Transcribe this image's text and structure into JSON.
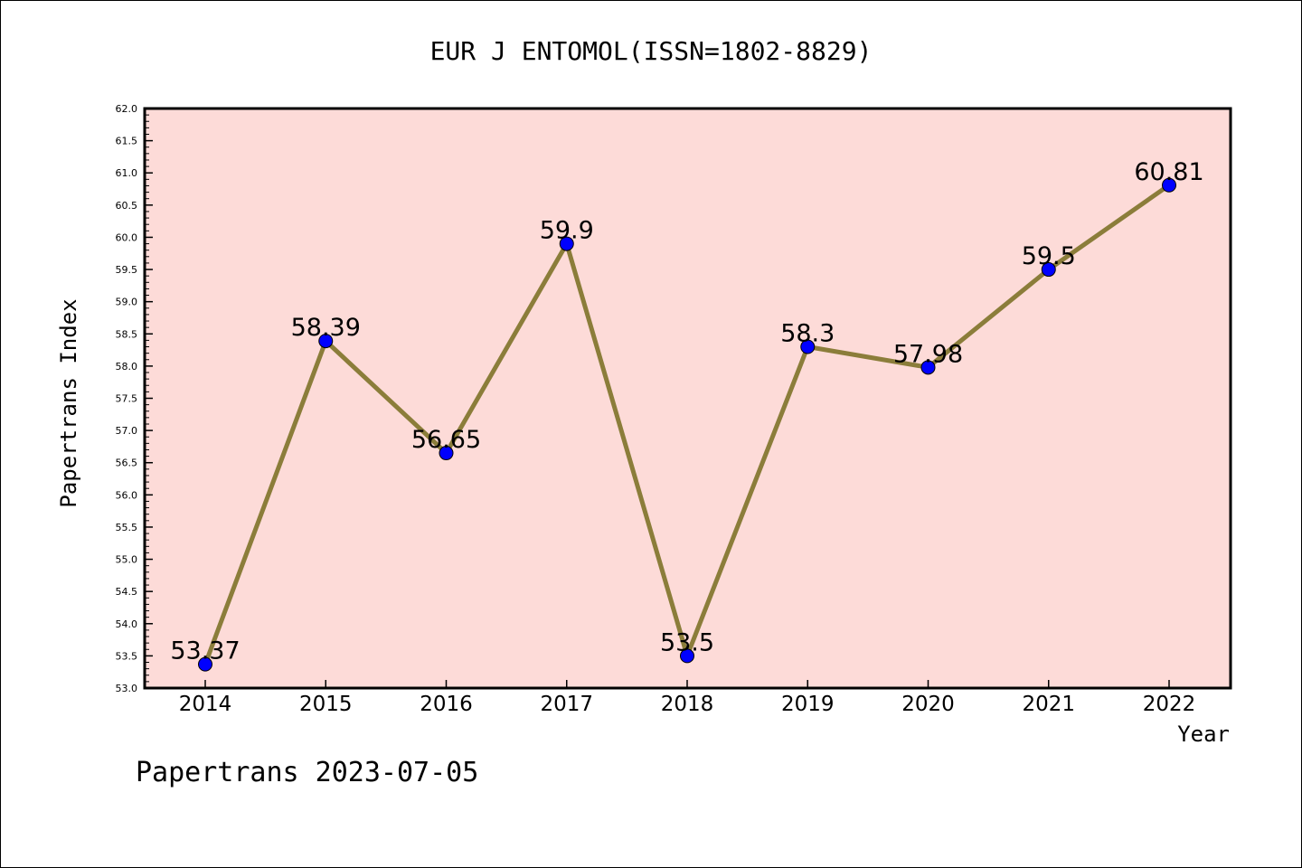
{
  "chart_data": {
    "type": "line",
    "title": "EUR J ENTOMOL(ISSN=1802-8829)",
    "xlabel": "Year",
    "ylabel": "Papertrans Index",
    "categories": [
      "2014",
      "2015",
      "2016",
      "2017",
      "2018",
      "2019",
      "2020",
      "2021",
      "2022"
    ],
    "values": [
      53.37,
      58.39,
      56.65,
      59.9,
      53.5,
      58.3,
      57.98,
      59.5,
      60.81
    ],
    "data_labels": [
      "53.37",
      "58.39",
      "56.65",
      "59.9",
      "53.5",
      "58.3",
      "57.98",
      "59.5",
      "60.81"
    ],
    "ylim": [
      53.0,
      62.0
    ],
    "yticks": [
      "53.0",
      "53.5",
      "54.0",
      "54.5",
      "55.0",
      "55.5",
      "56.0",
      "56.5",
      "57.0",
      "57.5",
      "58.0",
      "58.5",
      "59.0",
      "59.5",
      "60.0",
      "60.5",
      "61.0",
      "61.5",
      "62.0"
    ],
    "grid": false,
    "colors": {
      "plot_background": "#fddbd8",
      "line": "#8b7d3a",
      "marker": "#0000ff"
    }
  },
  "footer": "Papertrans 2023-07-05"
}
